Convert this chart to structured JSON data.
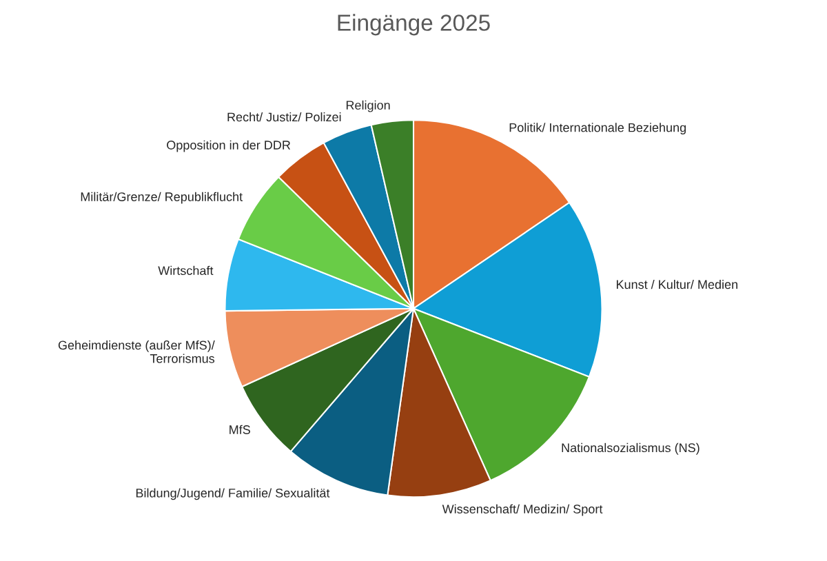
{
  "chart_data": {
    "type": "pie",
    "title": "Eingänge 2025",
    "categories": [
      "Politik/ Internationale Beziehung",
      "Kunst / Kultur/ Medien",
      "Nationalsozialismus (NS)",
      "Wissenschaft/ Medizin/ Sport",
      "Bildung/Jugend/ Familie/ Sexualität",
      "MfS",
      "Geheimdienste (außer MfS)/ Terrorismus",
      "Wirtschaft",
      "Militär/Grenze/ Republikflucht",
      "Opposition in der DDR",
      "Recht/ Justiz/ Polizei",
      "Religion"
    ],
    "values": [
      15.5,
      15.4,
      12.4,
      8.9,
      9.1,
      6.9,
      6.6,
      6.2,
      6.3,
      4.8,
      4.3,
      3.6
    ],
    "colors": [
      "#e87131",
      "#0f9ed5",
      "#4ea72e",
      "#963f11",
      "#0b5e82",
      "#2f651f",
      "#ee8e5c",
      "#2eb8ee",
      "#69cc47",
      "#c75114",
      "#0d7aa7",
      "#3b7f28"
    ],
    "legend": false
  }
}
